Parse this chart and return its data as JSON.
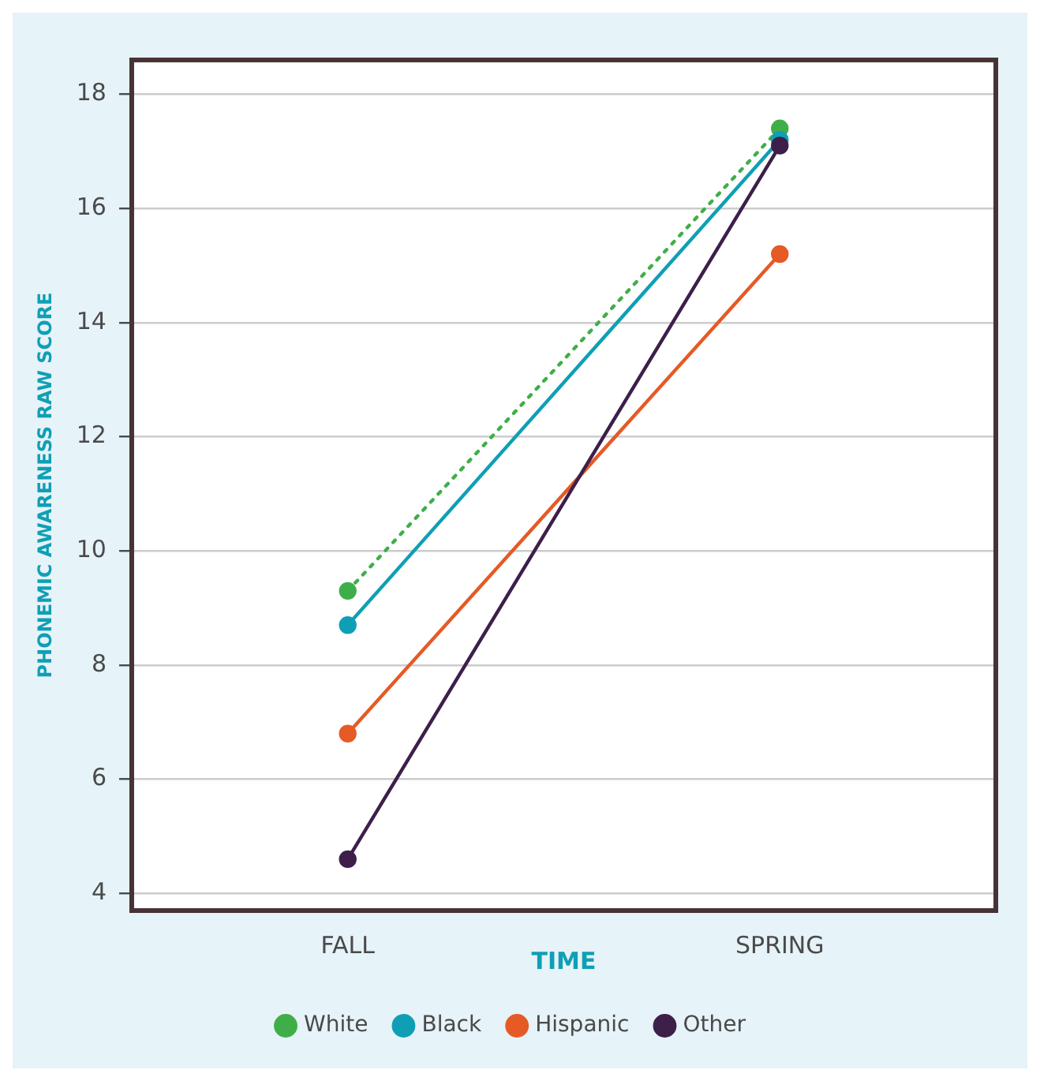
{
  "chart_data": {
    "type": "line",
    "xlabel": "TIME",
    "ylabel": "PHONEMIC AWARENESS RAW SCORE",
    "categories": [
      "FALL",
      "SPRING"
    ],
    "series": [
      {
        "name": "White",
        "color": "#3fae49",
        "values": [
          9.3,
          17.4
        ],
        "line_style": "dotted"
      },
      {
        "name": "Black",
        "color": "#0f9fb5",
        "values": [
          8.7,
          17.2
        ]
      },
      {
        "name": "Hispanic",
        "color": "#e55a25",
        "values": [
          6.8,
          15.2
        ]
      },
      {
        "name": "Other",
        "color": "#3d1f4a",
        "values": [
          4.6,
          17.1
        ]
      }
    ],
    "ylim": [
      3.7,
      18.6
    ],
    "yticks": [
      4,
      6,
      8,
      10,
      12,
      14,
      16,
      18
    ],
    "grid": "y",
    "legend": "bottom",
    "marker": "circle"
  }
}
